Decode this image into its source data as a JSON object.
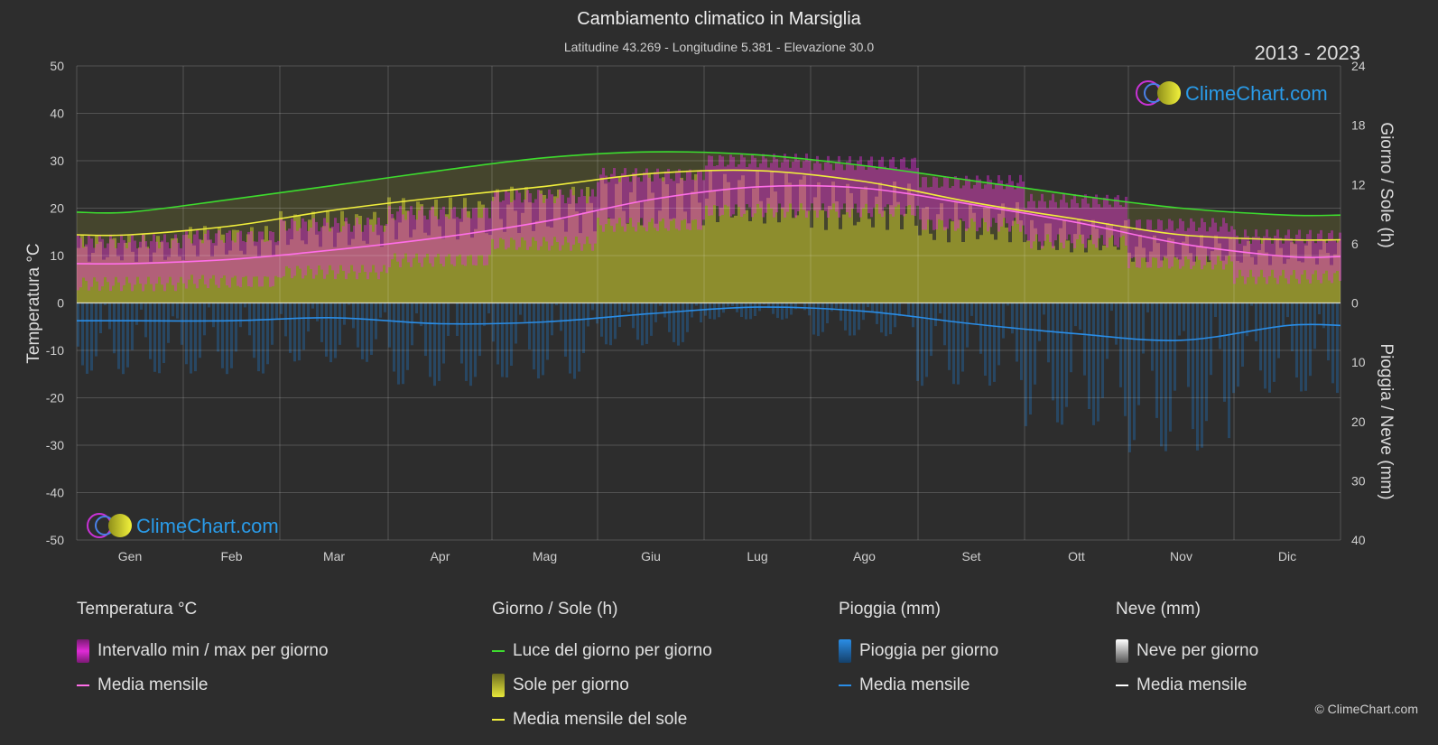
{
  "title": "Cambiamento climatico in Marsiglia",
  "subtitle": "Latitudine 43.269 - Longitudine 5.381 - Elevazione 30.0",
  "years": "2013 - 2023",
  "copyright": "© ClimeChart.com",
  "logo_text": "ClimeChart.com",
  "colors": {
    "background": "#2d2d2d",
    "temp_range": "#e02bd6",
    "temp_mean": "#ff6ee8",
    "daylight": "#3ddc2e",
    "sunshine": "#c9c92e",
    "sun_mean": "#f0ee3c",
    "rain": "#1f78c8",
    "rain_mean": "#2a8de6",
    "snow": "#dddddd",
    "snow_mean": "#ffffff",
    "logo": "#2a9be8"
  },
  "chart_data": {
    "type": "area",
    "x_categories": [
      "Gen",
      "Feb",
      "Mar",
      "Apr",
      "Mag",
      "Giu",
      "Lug",
      "Ago",
      "Set",
      "Ott",
      "Nov",
      "Dic"
    ],
    "y_left": {
      "label": "Temperatura °C",
      "range": [
        -50,
        50
      ],
      "ticks": [
        "50",
        "40",
        "30",
        "20",
        "10",
        "0",
        "-10",
        "-20",
        "-30",
        "-40",
        "-50"
      ]
    },
    "y_right_top": {
      "label": "Giorno / Sole (h)",
      "range": [
        0,
        24
      ],
      "ticks": [
        "24",
        "18",
        "12",
        "6",
        "0"
      ]
    },
    "y_right_bottom": {
      "label": "Pioggia / Neve (mm)",
      "range": [
        0,
        40
      ],
      "ticks": [
        "10",
        "20",
        "30",
        "40"
      ]
    },
    "series": [
      {
        "name": "Luce del giorno per giorno",
        "unit": "h",
        "values": [
          9.2,
          10.5,
          11.9,
          13.4,
          14.7,
          15.3,
          15.0,
          13.9,
          12.4,
          10.9,
          9.6,
          8.9
        ]
      },
      {
        "name": "Media mensile del sole",
        "unit": "h",
        "values": [
          6.9,
          7.8,
          9.4,
          10.7,
          11.8,
          13.1,
          13.4,
          12.3,
          10.2,
          8.5,
          6.9,
          6.4
        ]
      },
      {
        "name": "Media mensile",
        "group": "Temperatura °C",
        "unit": "°C",
        "values": [
          8.3,
          9.2,
          11.2,
          13.8,
          17.2,
          21.8,
          24.5,
          24.2,
          20.8,
          17.0,
          12.5,
          9.8
        ]
      },
      {
        "name": "Intervallo min / max per giorno",
        "unit": "°C",
        "min": [
          4,
          4.5,
          6.5,
          9,
          12.5,
          16.5,
          19.5,
          19.5,
          16.5,
          13,
          8.5,
          5.5
        ],
        "max": [
          13,
          14,
          16.5,
          19,
          22.5,
          27,
          30,
          29.5,
          25.5,
          21.5,
          16.5,
          14
        ]
      },
      {
        "name": "Media mensile",
        "group": "Pioggia (mm)",
        "unit": "mm",
        "values": [
          3.0,
          3.0,
          2.5,
          3.5,
          3.2,
          1.8,
          0.7,
          1.4,
          3.5,
          5.2,
          6.3,
          3.8
        ]
      },
      {
        "name": "Media mensile",
        "group": "Neve (mm)",
        "unit": "mm",
        "values": [
          0,
          0,
          0,
          0,
          0,
          0,
          0,
          0,
          0,
          0,
          0,
          0
        ]
      }
    ],
    "grid": true
  },
  "legend": {
    "temperature": {
      "title": "Temperatura °C",
      "items": [
        "Intervallo min / max per giorno",
        "Media mensile"
      ]
    },
    "daysun": {
      "title": "Giorno / Sole (h)",
      "items": [
        "Luce del giorno per giorno",
        "Sole per giorno",
        "Media mensile del sole"
      ]
    },
    "rain": {
      "title": "Pioggia (mm)",
      "items": [
        "Pioggia per giorno",
        "Media mensile"
      ]
    },
    "snow": {
      "title": "Neve (mm)",
      "items": [
        "Neve per giorno",
        "Media mensile"
      ]
    }
  }
}
